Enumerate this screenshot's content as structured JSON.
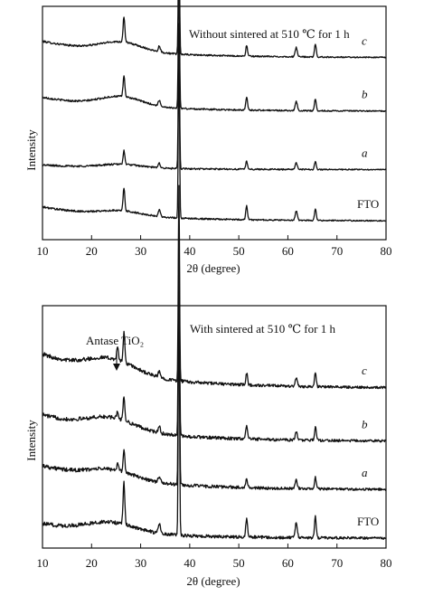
{
  "chart_data": [
    {
      "type": "line",
      "panel": "top",
      "title": "Without sintered at 510 ℃ for 1 h",
      "xlabel": "2θ (degree)",
      "ylabel": "Intensity",
      "xlim": [
        10,
        80
      ],
      "xticks": [
        "10",
        "20",
        "30",
        "40",
        "50",
        "60",
        "70",
        "80"
      ],
      "series": [
        {
          "name": "c",
          "label_italic": true,
          "offset": 0.78,
          "start_level": 0.07,
          "end_level": 0.0,
          "peaks": [
            {
              "x": 26.6,
              "h": 0.11,
              "w": 0.25
            },
            {
              "x": 33.8,
              "h": 0.025,
              "w": 0.3
            },
            {
              "x": 37.8,
              "h": 0.58,
              "w": 0.18
            },
            {
              "x": 51.6,
              "h": 0.045,
              "w": 0.25
            },
            {
              "x": 61.7,
              "h": 0.04,
              "w": 0.3
            },
            {
              "x": 65.6,
              "h": 0.055,
              "w": 0.25
            }
          ],
          "hump": {
            "center": 26,
            "height": 0.04,
            "width": 6
          }
        },
        {
          "name": "b",
          "label_italic": true,
          "offset": 0.55,
          "start_level": 0.06,
          "end_level": 0.0,
          "peaks": [
            {
              "x": 26.6,
              "h": 0.09,
              "w": 0.25
            },
            {
              "x": 33.8,
              "h": 0.025,
              "w": 0.3
            },
            {
              "x": 37.8,
              "h": 0.6,
              "w": 0.18
            },
            {
              "x": 51.6,
              "h": 0.055,
              "w": 0.25
            },
            {
              "x": 61.7,
              "h": 0.04,
              "w": 0.3
            },
            {
              "x": 65.6,
              "h": 0.05,
              "w": 0.25
            }
          ],
          "hump": {
            "center": 26,
            "height": 0.04,
            "width": 6
          }
        },
        {
          "name": "a",
          "label_italic": true,
          "offset": 0.3,
          "start_level": 0.02,
          "end_level": 0.0,
          "peaks": [
            {
              "x": 26.6,
              "h": 0.06,
              "w": 0.25
            },
            {
              "x": 33.8,
              "h": 0.02,
              "w": 0.3
            },
            {
              "x": 37.8,
              "h": 0.62,
              "w": 0.18
            },
            {
              "x": 51.6,
              "h": 0.035,
              "w": 0.25
            },
            {
              "x": 61.7,
              "h": 0.03,
              "w": 0.3
            },
            {
              "x": 65.6,
              "h": 0.035,
              "w": 0.25
            }
          ],
          "hump": {
            "center": 26,
            "height": 0.015,
            "width": 6
          }
        },
        {
          "name": "FTO",
          "label_italic": false,
          "offset": 0.08,
          "start_level": 0.06,
          "end_level": 0.0,
          "peaks": [
            {
              "x": 26.6,
              "h": 0.1,
              "w": 0.25
            },
            {
              "x": 33.8,
              "h": 0.03,
              "w": 0.3
            },
            {
              "x": 37.8,
              "h": 0.7,
              "w": 0.18
            },
            {
              "x": 51.6,
              "h": 0.06,
              "w": 0.25
            },
            {
              "x": 61.7,
              "h": 0.04,
              "w": 0.3
            },
            {
              "x": 65.6,
              "h": 0.05,
              "w": 0.25
            }
          ],
          "hump": {
            "center": 26,
            "height": 0.02,
            "width": 6
          }
        }
      ]
    },
    {
      "type": "line",
      "panel": "bottom",
      "title": "With sintered at 510 ℃ for 1 h",
      "annotation": "Antase TiO₂",
      "annotation_x": 25.3,
      "xlabel": "2θ (degree)",
      "ylabel": "Intensity",
      "xlim": [
        10,
        80
      ],
      "xticks": [
        "10",
        "20",
        "30",
        "40",
        "50",
        "60",
        "70",
        "80"
      ],
      "series": [
        {
          "name": "c",
          "label_italic": true,
          "offset": 0.66,
          "start_level": 0.14,
          "end_level": 0.0,
          "peaks": [
            {
              "x": 25.3,
              "h": 0.05,
              "w": 0.25
            },
            {
              "x": 26.6,
              "h": 0.12,
              "w": 0.25
            },
            {
              "x": 33.8,
              "h": 0.025,
              "w": 0.3
            },
            {
              "x": 37.8,
              "h": 0.8,
              "w": 0.18
            },
            {
              "x": 51.6,
              "h": 0.05,
              "w": 0.25
            },
            {
              "x": 61.7,
              "h": 0.035,
              "w": 0.3
            },
            {
              "x": 65.6,
              "h": 0.055,
              "w": 0.25
            }
          ],
          "hump": {
            "center": 24,
            "height": 0.06,
            "width": 7
          }
        },
        {
          "name": "b",
          "label_italic": true,
          "offset": 0.44,
          "start_level": 0.11,
          "end_level": 0.0,
          "peaks": [
            {
              "x": 25.3,
              "h": 0.03,
              "w": 0.25
            },
            {
              "x": 26.6,
              "h": 0.1,
              "w": 0.25
            },
            {
              "x": 33.8,
              "h": 0.025,
              "w": 0.3
            },
            {
              "x": 37.8,
              "h": 0.9,
              "w": 0.18
            },
            {
              "x": 51.6,
              "h": 0.06,
              "w": 0.25
            },
            {
              "x": 61.7,
              "h": 0.035,
              "w": 0.3
            },
            {
              "x": 65.6,
              "h": 0.055,
              "w": 0.25
            }
          ],
          "hump": {
            "center": 24,
            "height": 0.05,
            "width": 7
          }
        },
        {
          "name": "a",
          "label_italic": true,
          "offset": 0.24,
          "start_level": 0.1,
          "end_level": 0.0,
          "peaks": [
            {
              "x": 25.3,
              "h": 0.025,
              "w": 0.25
            },
            {
              "x": 26.6,
              "h": 0.09,
              "w": 0.25
            },
            {
              "x": 33.8,
              "h": 0.025,
              "w": 0.3
            },
            {
              "x": 37.8,
              "h": 0.95,
              "w": 0.18
            },
            {
              "x": 51.6,
              "h": 0.04,
              "w": 0.25
            },
            {
              "x": 61.7,
              "h": 0.035,
              "w": 0.3
            },
            {
              "x": 65.6,
              "h": 0.05,
              "w": 0.25
            }
          ],
          "hump": {
            "center": 24,
            "height": 0.04,
            "width": 7
          }
        },
        {
          "name": "FTO",
          "label_italic": false,
          "offset": 0.04,
          "start_level": 0.06,
          "end_level": 0.0,
          "peaks": [
            {
              "x": 26.6,
              "h": 0.17,
              "w": 0.25
            },
            {
              "x": 33.8,
              "h": 0.04,
              "w": 0.3
            },
            {
              "x": 37.8,
              "h": 1.0,
              "w": 0.18
            },
            {
              "x": 51.6,
              "h": 0.08,
              "w": 0.25
            },
            {
              "x": 61.7,
              "h": 0.06,
              "w": 0.3
            },
            {
              "x": 65.6,
              "h": 0.09,
              "w": 0.25
            }
          ],
          "hump": {
            "center": 24,
            "height": 0.04,
            "width": 7
          }
        }
      ]
    }
  ]
}
